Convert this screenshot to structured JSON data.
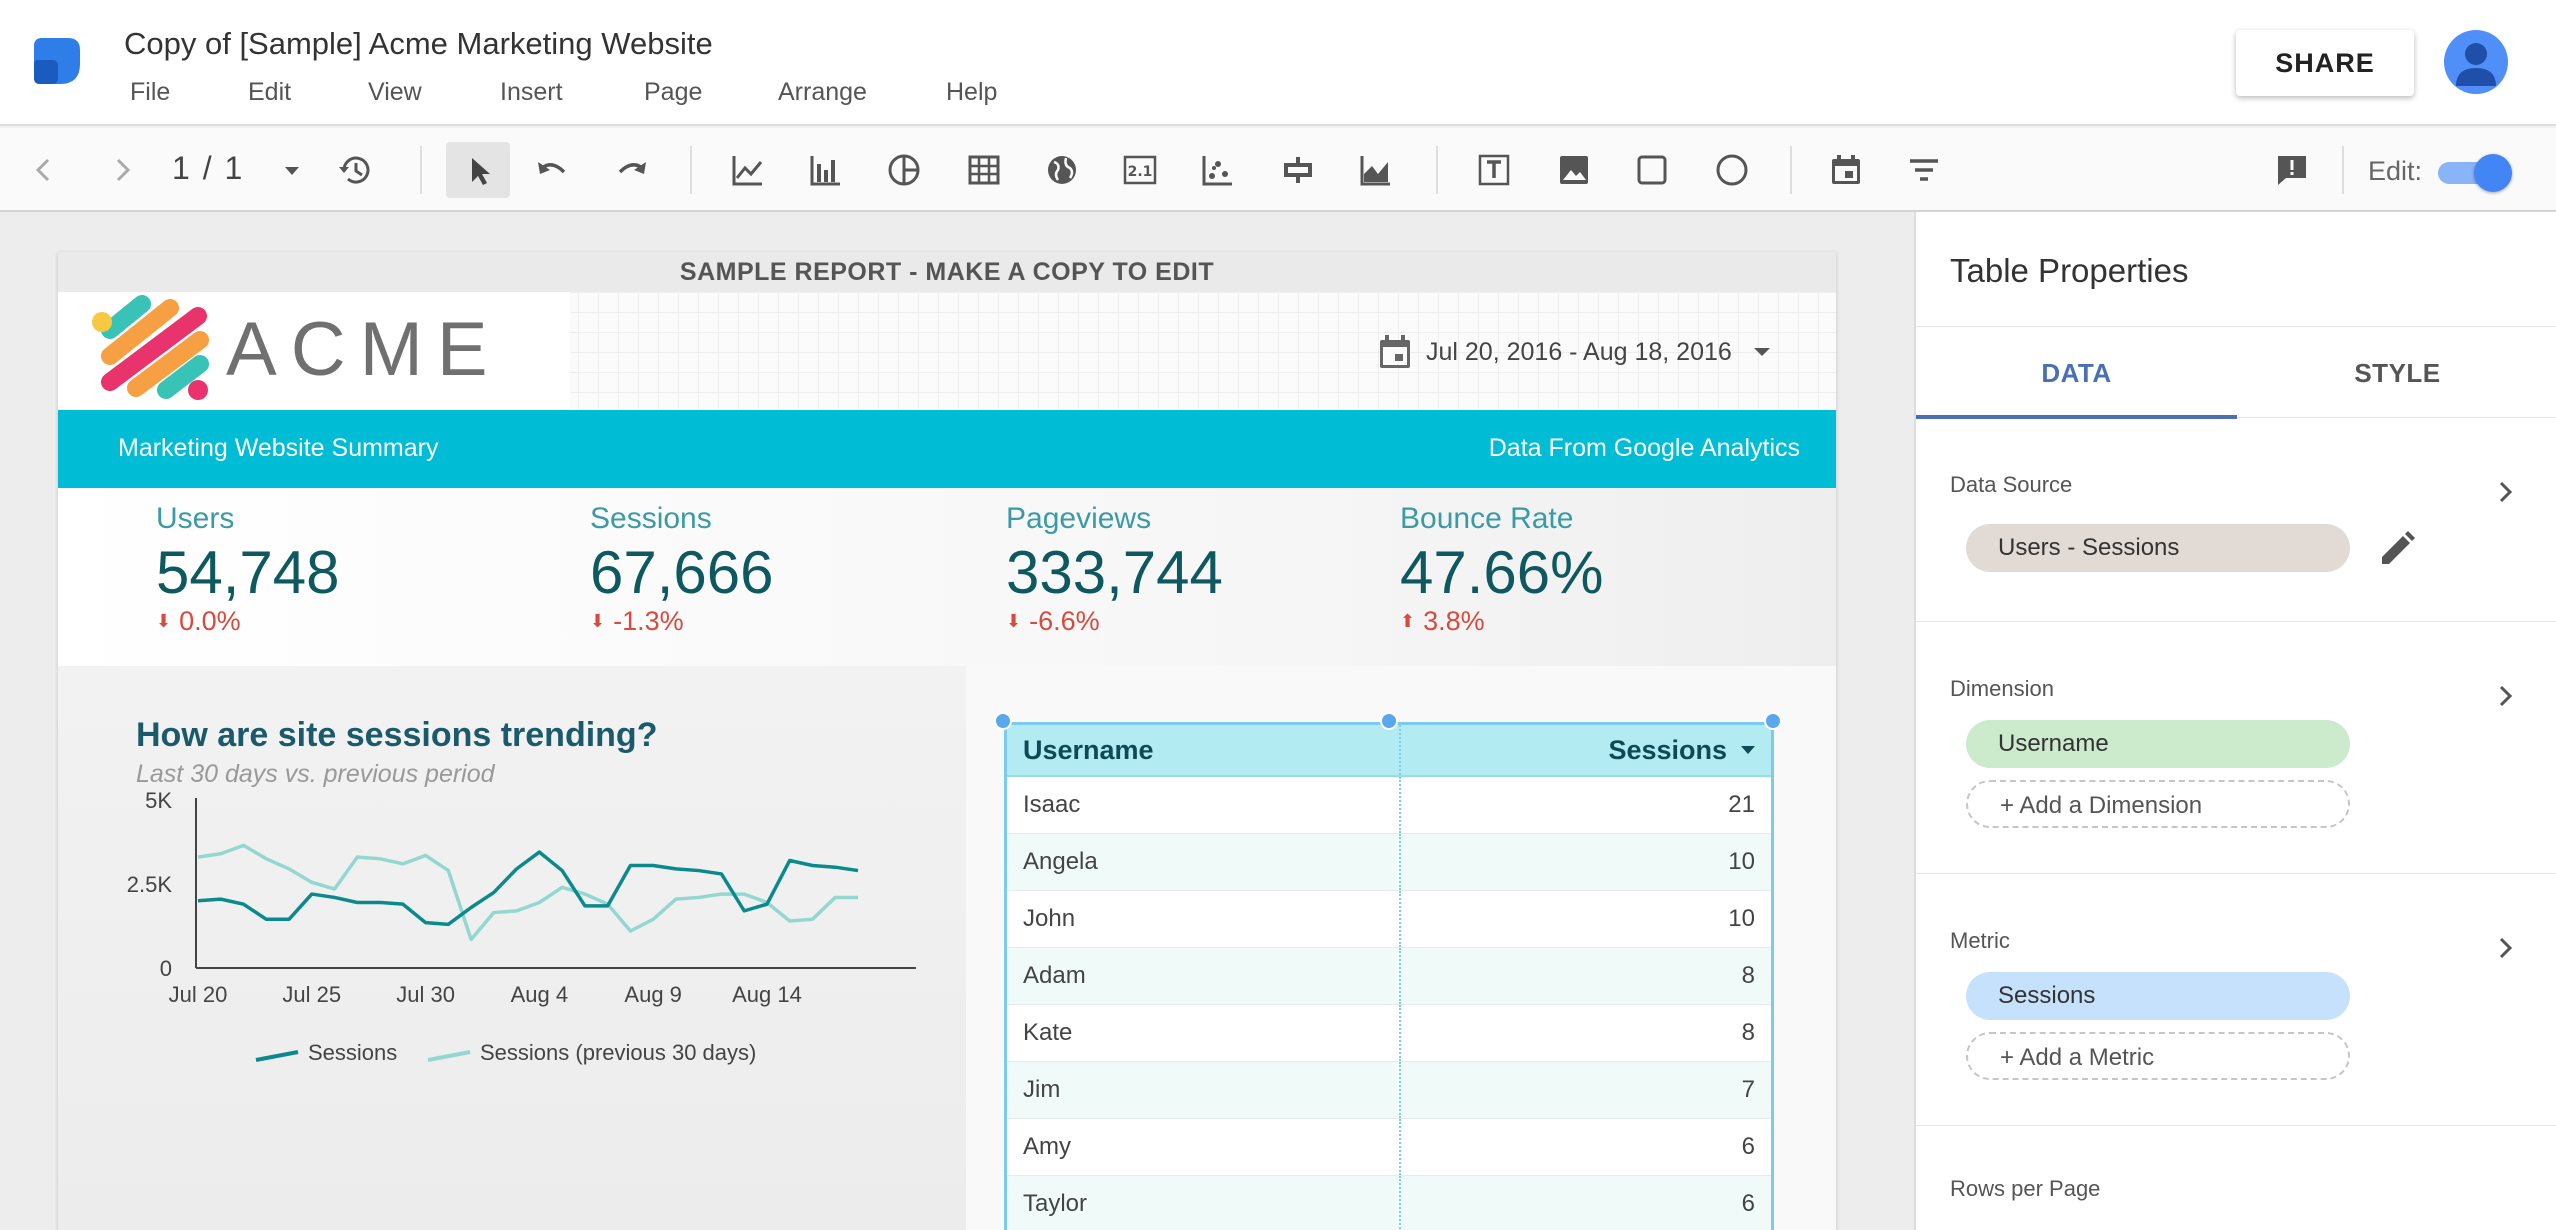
{
  "app": {
    "doc_title": "Copy of [Sample] Acme Marketing Website",
    "menu": [
      "File",
      "Edit",
      "View",
      "Insert",
      "Page",
      "Arrange",
      "Help"
    ],
    "share_label": "SHARE"
  },
  "toolbar": {
    "page_indicator": "1 / 1",
    "edit_label": "Edit:",
    "edit_mode": true,
    "icons": [
      "back-arrow-icon",
      "forward-arrow-icon",
      "page-dropdown-icon",
      "history-icon",
      "select-pointer-icon",
      "undo-icon",
      "redo-icon",
      "time-series-chart-icon",
      "bar-chart-icon",
      "pie-chart-icon",
      "table-icon",
      "geo-map-icon",
      "scorecard-icon",
      "scatter-chart-icon",
      "bullet-chart-icon",
      "area-chart-icon",
      "text-box-icon",
      "image-icon",
      "rectangle-icon",
      "circle-icon",
      "date-range-icon",
      "filter-control-icon",
      "feedback-icon"
    ]
  },
  "report": {
    "banner": "SAMPLE REPORT - MAKE A COPY TO EDIT",
    "logo_text": "ACME",
    "date_range": "Jul 20, 2016 - Aug 18, 2016",
    "summary_title": "Marketing Website Summary",
    "summary_source": "Data From Google Analytics",
    "kpis": [
      {
        "label": "Users",
        "value": "54,748",
        "delta": "0.0%"
      },
      {
        "label": "Sessions",
        "value": "67,666",
        "delta": "-1.3%"
      },
      {
        "label": "Pageviews",
        "value": "333,744",
        "delta": "-6.6%"
      },
      {
        "label": "Bounce Rate",
        "value": "47.66%",
        "delta": "3.8%"
      }
    ],
    "chart_title": "How are site sessions trending?",
    "chart_subtitle": "Last 30 days vs. previous period",
    "table": {
      "headers": [
        "Username",
        "Sessions"
      ],
      "rows": [
        {
          "username": "Isaac",
          "sessions": "21"
        },
        {
          "username": "Angela",
          "sessions": "10"
        },
        {
          "username": "John",
          "sessions": "10"
        },
        {
          "username": "Adam",
          "sessions": "8"
        },
        {
          "username": "Kate",
          "sessions": "8"
        },
        {
          "username": "Jim",
          "sessions": "7"
        },
        {
          "username": "Amy",
          "sessions": "6"
        },
        {
          "username": "Taylor",
          "sessions": "6"
        }
      ]
    }
  },
  "chart_data": {
    "type": "line",
    "title": "How are site sessions trending?",
    "subtitle": "Last 30 days vs. previous period",
    "xlabel": "",
    "ylabel": "",
    "ylim": [
      0,
      5000
    ],
    "yticks": [
      "0",
      "2.5K",
      "5K"
    ],
    "xticks": [
      "Jul 20",
      "Jul 25",
      "Jul 30",
      "Aug 4",
      "Aug 9",
      "Aug 14"
    ],
    "grid": false,
    "legend": "bottom",
    "series": [
      {
        "name": "Sessions",
        "color": "#0b8a8e",
        "values": [
          2000,
          2050,
          1900,
          1450,
          1450,
          2200,
          2100,
          1950,
          1950,
          1900,
          1350,
          1300,
          1800,
          2250,
          2950,
          3450,
          2900,
          1850,
          1850,
          3050,
          3050,
          2950,
          2900,
          2800,
          1700,
          1900,
          3200,
          3050,
          3000,
          2900
        ]
      },
      {
        "name": "Sessions (previous 30 days)",
        "color": "#93d8d0",
        "values": [
          3300,
          3400,
          3650,
          3250,
          2950,
          2550,
          2350,
          3300,
          3250,
          3100,
          3350,
          2900,
          850,
          1650,
          1700,
          1950,
          2400,
          2200,
          1900,
          1100,
          1450,
          2050,
          2100,
          2200,
          2200,
          1950,
          1400,
          1450,
          2100,
          2100
        ]
      }
    ]
  },
  "props": {
    "title": "Table Properties",
    "tab_data": "DATA",
    "tab_style": "STYLE",
    "data_source_label": "Data Source",
    "data_source_value": "Users - Sessions",
    "dimension_label": "Dimension",
    "dimension_value": "Username",
    "add_dimension": "+ Add a Dimension",
    "metric_label": "Metric",
    "metric_value": "Sessions",
    "add_metric": "+ Add a Metric",
    "rows_per_page_label": "Rows per Page",
    "colors": {
      "datasource_chip": "#e2dad4",
      "dimension_chip": "#ccebcc",
      "metric_chip": "#c6e1fb",
      "accent": "#4a6fb5"
    }
  }
}
